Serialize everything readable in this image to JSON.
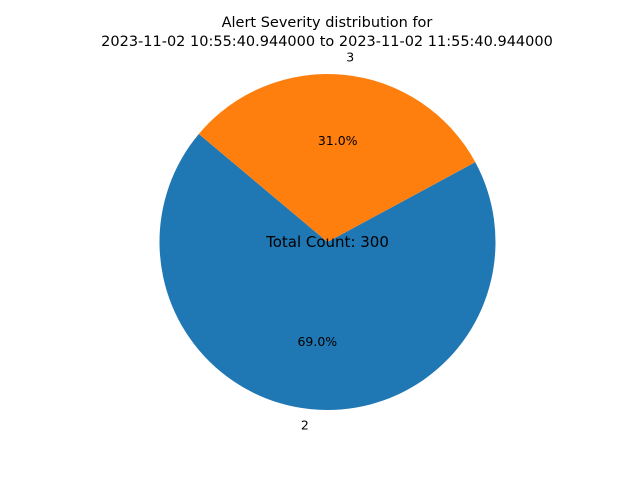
{
  "chart_data": {
    "type": "pie",
    "title": "Alert Severity distribution for\n2023-11-02 10:55:40.944000 to 2023-11-02 11:55:40.944000",
    "categories": [
      "2",
      "3"
    ],
    "values": [
      207,
      93
    ],
    "percent_labels": [
      "69.0%",
      "31.0%"
    ],
    "colors": [
      "#1f77b4",
      "#ff7f0e"
    ],
    "start_angle_deg": 140,
    "counterclockwise": true,
    "center_annotation": "Total Count: 300",
    "legend": false
  }
}
